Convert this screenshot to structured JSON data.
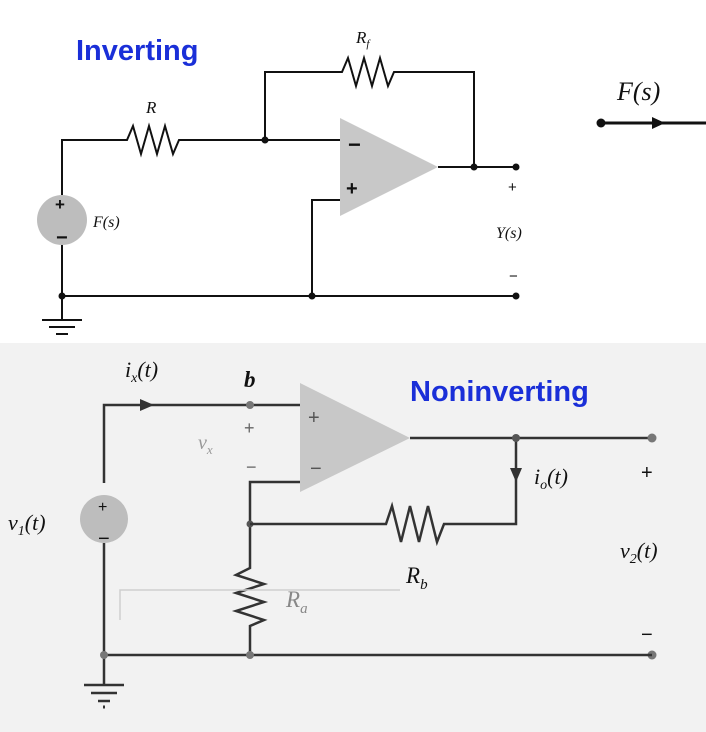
{
  "inverting": {
    "title": "Inverting",
    "resistor_in": "R",
    "resistor_fb": "R",
    "resistor_fb_sub": "f",
    "source": "F(s)",
    "output": "Y(s)",
    "plus": "+",
    "minus": "−"
  },
  "block": {
    "input": "F(s)"
  },
  "noninverting": {
    "title": "Noninverting",
    "source": "v",
    "source_sub": "1",
    "source_arg": "(t)",
    "current_in": "i",
    "current_in_sub": "x",
    "current_in_arg": "(t)",
    "node": "b",
    "vx": "v",
    "vx_sub": "x",
    "current_out": "i",
    "current_out_sub": "o",
    "current_out_arg": "(t)",
    "output": "v",
    "output_sub": "2",
    "output_arg": "(t)",
    "ra": "R",
    "ra_sub": "a",
    "rb": "R",
    "rb_sub": "b",
    "plus": "+",
    "minus": "−"
  },
  "colors": {
    "title": "#1a2fd8",
    "opamp_fill": "#c8c8c8",
    "source_fill": "#bdbdbd",
    "bottom_bg": "#f2f2f2"
  }
}
